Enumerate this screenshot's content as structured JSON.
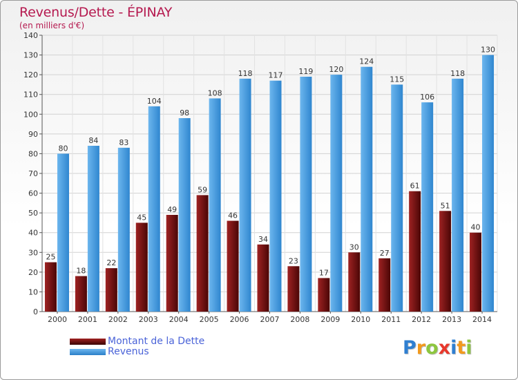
{
  "chart_data": {
    "type": "bar",
    "title": "Revenus/Dette - ÉPINAY",
    "subtitle": "(en milliers d'€)",
    "categories": [
      "2000",
      "2001",
      "2002",
      "2003",
      "2004",
      "2005",
      "2006",
      "2007",
      "2008",
      "2009",
      "2010",
      "2011",
      "2012",
      "2013",
      "2014"
    ],
    "series": [
      {
        "name": "Montant de la Dette",
        "color": "#7a1010",
        "values": [
          25,
          18,
          22,
          45,
          49,
          59,
          46,
          34,
          23,
          17,
          30,
          27,
          61,
          51,
          40
        ]
      },
      {
        "name": "Revenus",
        "color": "#3d95d9",
        "values": [
          80,
          84,
          83,
          104,
          98,
          108,
          118,
          117,
          119,
          120,
          124,
          115,
          106,
          118,
          130
        ]
      }
    ],
    "ylim": [
      0,
      140
    ],
    "yticks": [
      0,
      10,
      20,
      30,
      40,
      50,
      60,
      70,
      80,
      90,
      100,
      110,
      120,
      130,
      140
    ],
    "grid": true,
    "legend_position": "bottom-left"
  },
  "brand": {
    "letters": [
      {
        "ch": "P",
        "color": "#2f7fd1"
      },
      {
        "ch": "r",
        "color": "#f29a1e"
      },
      {
        "ch": "o",
        "color": "#8dc63f"
      },
      {
        "ch": "x",
        "color": "#e8382c"
      },
      {
        "ch": "i",
        "color": "#2f7fd1"
      },
      {
        "ch": "t",
        "color": "#f29a1e"
      },
      {
        "ch": "i",
        "color": "#8dc63f"
      }
    ]
  }
}
